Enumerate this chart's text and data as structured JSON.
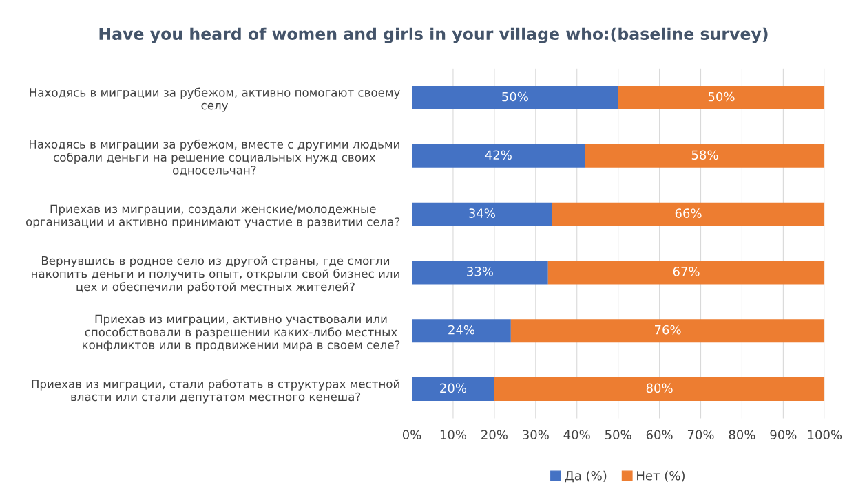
{
  "chart_data": {
    "type": "bar",
    "orientation": "horizontal",
    "stacked": true,
    "title": "Have you heard of women and girls in your village who:(baseline survey)",
    "categories": [
      "Находясь в миграции за рубежом, активно помогают своему\nселу",
      "Находясь в миграции за рубежом, вместе с другими людьми\nсобрали деньги на решение социальных нужд своих\nодносельчан?",
      "Приехав из миграции, создали женские/молодежные\nорганизации и активно принимают участие в развитии села?",
      "Вернувшись в родное село из другой страны, где смогли\nнакопить деньги и получить опыт, открыли свой бизнес или\nцех и обеспечили работой местных жителей?",
      "Приехав из миграции, активно участвовали или\nспособствовали в разрешении каких-либо местных\nконфликтов или в продвижении мира в своем селе?",
      "Приехав из миграции, стали работать в структурах местной\nвласти или стали депутатом местного кенеша?"
    ],
    "series": [
      {
        "name": "Да (%)",
        "color": "#4472c4",
        "values": [
          50,
          42,
          34,
          33,
          24,
          20
        ],
        "value_labels": [
          "50%",
          "42%",
          "34%",
          "33%",
          "24%",
          "20%"
        ]
      },
      {
        "name": "Нет (%)",
        "color": "#ed7d31",
        "values": [
          50,
          58,
          66,
          67,
          76,
          80
        ],
        "value_labels": [
          "50%",
          "58%",
          "66%",
          "67%",
          "76%",
          "80%"
        ]
      }
    ],
    "xlim": [
      0,
      100
    ],
    "xticks": [
      {
        "value": 0,
        "label": "0%"
      },
      {
        "value": 10,
        "label": "10%"
      },
      {
        "value": 20,
        "label": "20%"
      },
      {
        "value": 30,
        "label": "30%"
      },
      {
        "value": 40,
        "label": "40%"
      },
      {
        "value": 50,
        "label": "50%"
      },
      {
        "value": 60,
        "label": "60%"
      },
      {
        "value": 70,
        "label": "70%"
      },
      {
        "value": 80,
        "label": "80%"
      },
      {
        "value": 90,
        "label": "90%"
      },
      {
        "value": 100,
        "label": "100%"
      }
    ],
    "grid": "x",
    "legend": "bottom"
  }
}
